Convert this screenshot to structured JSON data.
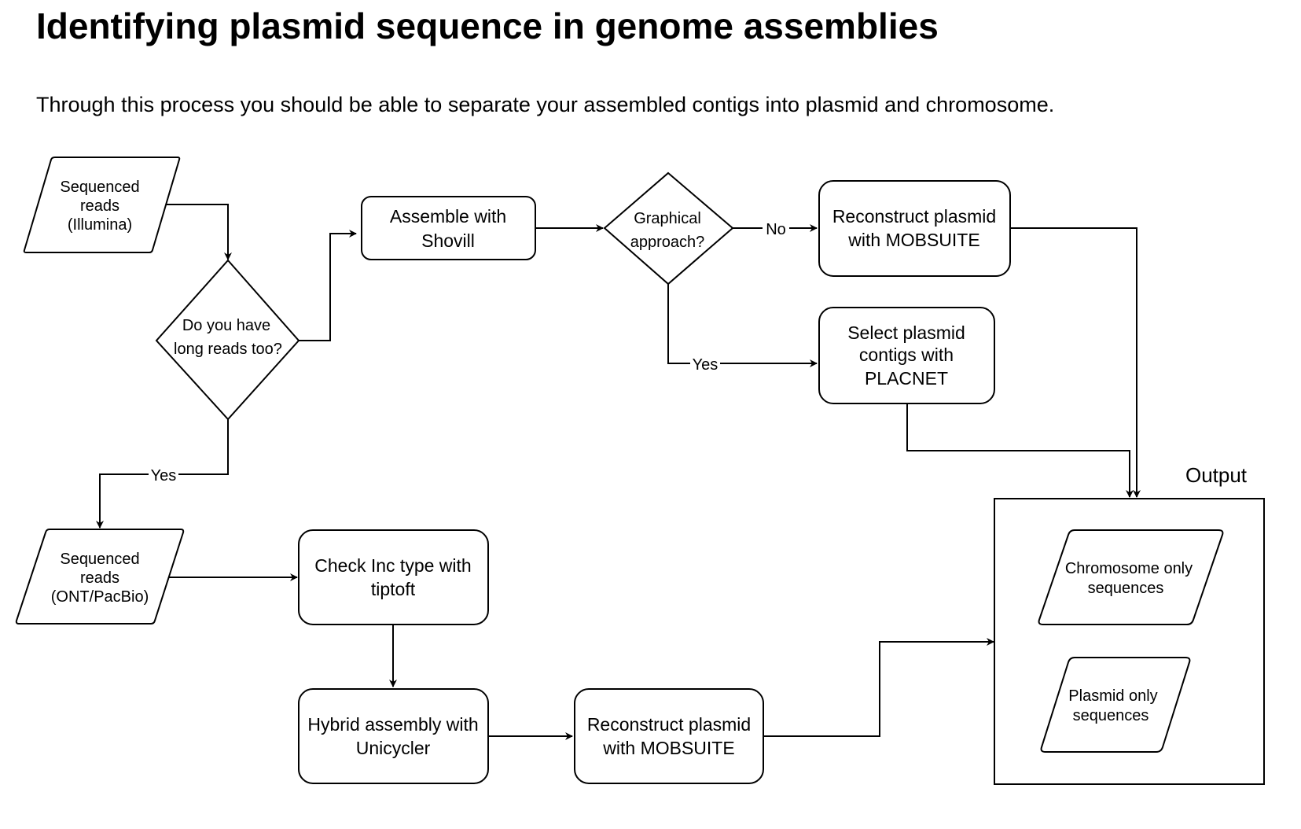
{
  "page": {
    "title": "Identifying plasmid sequence in genome assemblies",
    "subtitle": "Through this process you should be able to separate your assembled contigs into plasmid and chromosome."
  },
  "nodes": {
    "reads_illumina": [
      "Sequenced",
      "reads",
      "(Illumina)"
    ],
    "long_reads_decision": [
      "Do you have",
      "long reads too?"
    ],
    "assemble_shovill": [
      "Assemble with",
      "Shovill"
    ],
    "graphical_decision": [
      "Graphical",
      "approach?"
    ],
    "mobsuite_top": [
      "Reconstruct plasmid",
      "with MOBSUITE"
    ],
    "placnet": [
      "Select plasmid",
      "contigs with",
      "PLACNET"
    ],
    "reads_ont": [
      "Sequenced",
      "reads",
      "(ONT/PacBio)"
    ],
    "tiptoft": [
      "Check Inc type with",
      "tiptoft"
    ],
    "unicycler": [
      "Hybrid assembly with",
      "Unicycler"
    ],
    "mobsuite_bottom": [
      "Reconstruct plasmid",
      "with MOBSUITE"
    ],
    "output_title": "Output",
    "chromosome_only": [
      "Chromosome only",
      "sequences"
    ],
    "plasmid_only": [
      "Plasmid only",
      "sequences"
    ]
  },
  "edge_labels": {
    "no": "No",
    "yes_graphical": "Yes",
    "yes_long_reads": "Yes"
  },
  "colors": {
    "stroke": "#000000",
    "fill": "#ffffff",
    "text": "#000000"
  }
}
